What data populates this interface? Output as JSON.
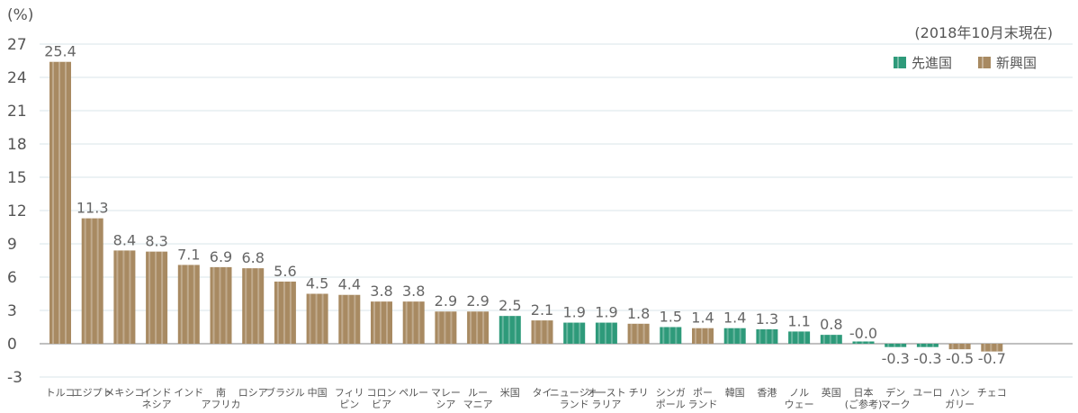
{
  "chart_data": {
    "type": "bar",
    "unit_label": "(%)",
    "note": "(2018年10月末現在)",
    "ylim": [
      -3,
      27
    ],
    "yticks": [
      -3,
      0,
      3,
      6,
      9,
      12,
      15,
      18,
      21,
      24,
      27
    ],
    "grid": true,
    "legend_position": "top-right",
    "legend": [
      {
        "key": "developed",
        "label": "先進国",
        "color": "#2e9a7a"
      },
      {
        "key": "emerging",
        "label": "新興国",
        "color": "#a88a62"
      }
    ],
    "categories": [
      [
        "トルコ"
      ],
      [
        "エジプト"
      ],
      [
        "メキシコ"
      ],
      [
        "インド",
        "ネシア"
      ],
      [
        "インド"
      ],
      [
        "南",
        "アフリカ"
      ],
      [
        "ロシア"
      ],
      [
        "ブラジル"
      ],
      [
        "中国"
      ],
      [
        "フィリ",
        "ピン"
      ],
      [
        "コロン",
        "ビア"
      ],
      [
        "ペルー"
      ],
      [
        "マレー",
        "シア"
      ],
      [
        "ルー",
        "マニア"
      ],
      [
        "米国"
      ],
      [
        "タイ"
      ],
      [
        "ニュージー",
        "ランド"
      ],
      [
        "オースト",
        "ラリア"
      ],
      [
        "チリ"
      ],
      [
        "シンガ",
        "ポール"
      ],
      [
        "ポー",
        "ランド"
      ],
      [
        "韓国"
      ],
      [
        "香港"
      ],
      [
        "ノル",
        "ウェー"
      ],
      [
        "英国"
      ],
      [
        "日本",
        "(ご参考)"
      ],
      [
        "デン",
        "マーク"
      ],
      [
        "ユーロ"
      ],
      [
        "ハン",
        "ガリー"
      ],
      [
        "チェコ"
      ]
    ],
    "value_labels": [
      "25.4",
      "11.3",
      "8.4",
      "8.3",
      "7.1",
      "6.9",
      "6.8",
      "5.6",
      "4.5",
      "4.4",
      "3.8",
      "3.8",
      "2.9",
      "2.9",
      "2.5",
      "2.1",
      "1.9",
      "1.9",
      "1.8",
      "1.5",
      "1.4",
      "1.4",
      "1.3",
      "1.1",
      "0.8",
      "-0.0",
      "-0.3",
      "-0.3",
      "-0.5",
      "-0.7"
    ],
    "values": [
      25.4,
      11.3,
      8.4,
      8.3,
      7.1,
      6.9,
      6.8,
      5.6,
      4.5,
      4.4,
      3.8,
      3.8,
      2.9,
      2.9,
      2.5,
      2.1,
      1.9,
      1.9,
      1.8,
      1.5,
      1.4,
      1.4,
      1.3,
      1.1,
      0.8,
      -0.0,
      -0.3,
      -0.3,
      -0.5,
      -0.7
    ],
    "groups": [
      "emerging",
      "emerging",
      "emerging",
      "emerging",
      "emerging",
      "emerging",
      "emerging",
      "emerging",
      "emerging",
      "emerging",
      "emerging",
      "emerging",
      "emerging",
      "emerging",
      "developed",
      "emerging",
      "developed",
      "developed",
      "emerging",
      "developed",
      "emerging",
      "developed",
      "developed",
      "developed",
      "developed",
      "developed",
      "developed",
      "developed",
      "emerging",
      "emerging"
    ]
  }
}
